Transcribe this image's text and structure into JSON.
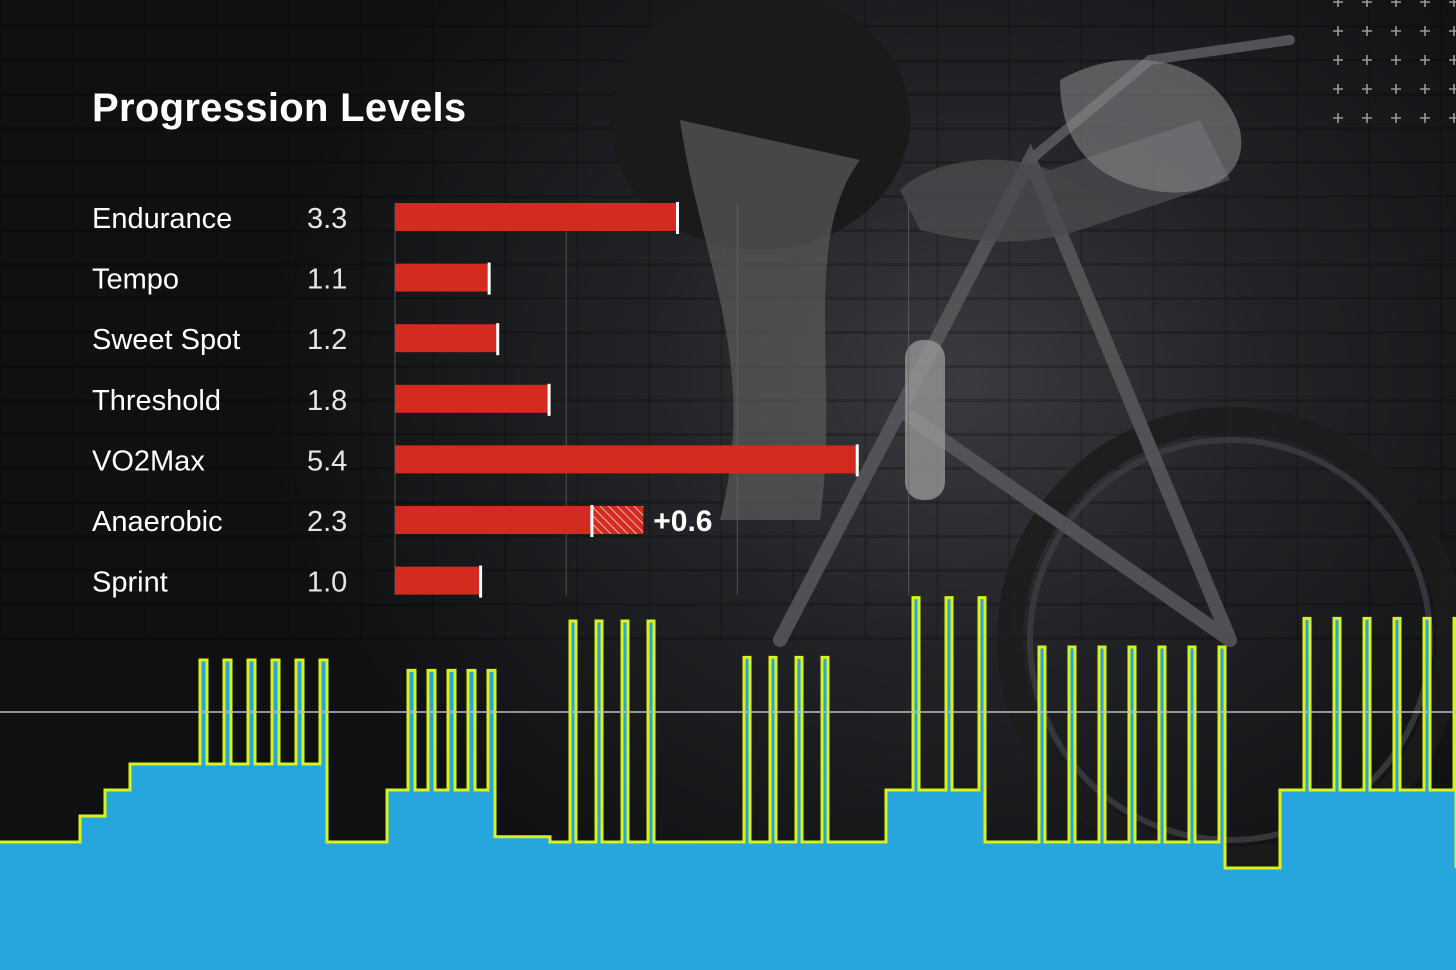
{
  "title": "Progression Levels",
  "colors": {
    "bar": "#d52a1f",
    "marker": "#ffffff",
    "workout_fill": "#27a6de",
    "workout_line": "#d8f21a",
    "gridline": "#6a6a6a"
  },
  "chart_data": {
    "type": "bar",
    "orientation": "horizontal",
    "title": "Progression Levels",
    "categories": [
      "Endurance",
      "Tempo",
      "Sweet Spot",
      "Threshold",
      "VO2Max",
      "Anaerobic",
      "Sprint"
    ],
    "values": [
      3.3,
      1.1,
      1.2,
      1.8,
      5.4,
      2.3,
      1.0
    ],
    "value_labels": [
      "3.3",
      "1.1",
      "1.2",
      "1.8",
      "5.4",
      "2.3",
      "1.0"
    ],
    "increase": {
      "category": "Anaerobic",
      "delta": 0.6,
      "label": "+0.6"
    },
    "xlim": [
      0,
      6
    ],
    "grid": true
  },
  "workout_profile": {
    "type": "area",
    "levels": [
      1,
      2,
      3,
      4,
      2,
      1,
      0,
      5,
      3,
      6
    ],
    "description_values": "relative power steps"
  }
}
